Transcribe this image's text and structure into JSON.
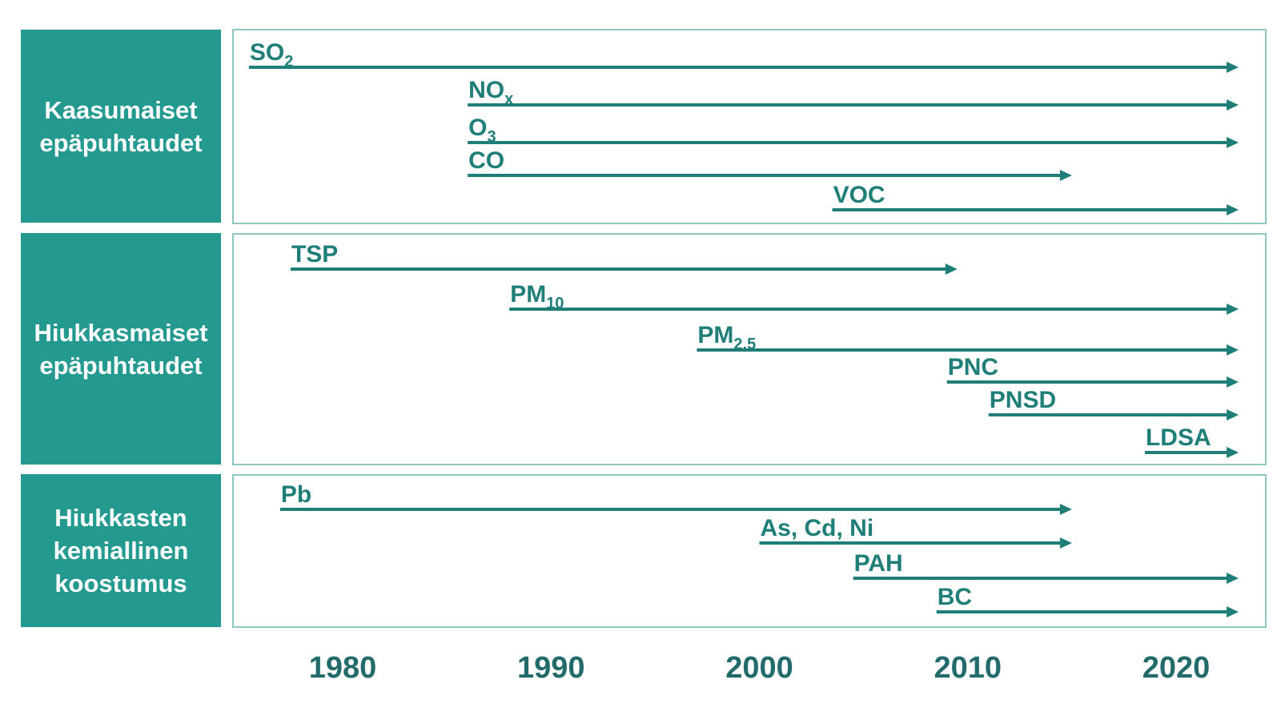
{
  "categories": [
    {
      "lines": [
        "Kaasumaiset",
        "epäpuhtaudet"
      ]
    },
    {
      "lines": [
        "Hiukkasmaiset",
        "epäpuhtaudet"
      ]
    },
    {
      "lines": [
        "Hiukkasten",
        "kemiallinen",
        "koostumus"
      ]
    }
  ],
  "colors": {
    "category_bg": "#239990",
    "arrow": "#1f7f78",
    "panel_border": "#8cc7c1",
    "axis_text": "#226b6a"
  },
  "axis": {
    "ticks": [
      1980,
      1990,
      2000,
      2010,
      2020
    ]
  },
  "series": [
    {
      "group": 0,
      "label": "SO",
      "sub": "2",
      "start": 1975.5,
      "end": 2023.0
    },
    {
      "group": 0,
      "label": "NO",
      "sub": "x",
      "start": 1986.0,
      "end": 2023.0
    },
    {
      "group": 0,
      "label": "O",
      "sub": "3",
      "start": 1986.0,
      "end": 2023.0
    },
    {
      "group": 0,
      "label": "CO",
      "sub": "",
      "start": 1986.0,
      "end": 2015.0
    },
    {
      "group": 0,
      "label": "VOC",
      "sub": "",
      "start": 2003.5,
      "end": 2023.0
    },
    {
      "group": 1,
      "label": "TSP",
      "sub": "",
      "start": 1977.5,
      "end": 2009.5
    },
    {
      "group": 1,
      "label": "PM",
      "sub": "10",
      "start": 1988.0,
      "end": 2023.0
    },
    {
      "group": 1,
      "label": "PM",
      "sub": "2,5",
      "start": 1997.0,
      "end": 2023.0
    },
    {
      "group": 1,
      "label": "PNC",
      "sub": "",
      "start": 2009.0,
      "end": 2023.0
    },
    {
      "group": 1,
      "label": "PNSD",
      "sub": "",
      "start": 2011.0,
      "end": 2023.0
    },
    {
      "group": 1,
      "label": "LDSA",
      "sub": "",
      "start": 2018.5,
      "end": 2023.0
    },
    {
      "group": 2,
      "label": "Pb",
      "sub": "",
      "start": 1977.0,
      "end": 2015.0
    },
    {
      "group": 2,
      "label": "As, Cd, Ni",
      "sub": "",
      "start": 2000.0,
      "end": 2015.0
    },
    {
      "group": 2,
      "label": "PAH",
      "sub": "",
      "start": 2004.5,
      "end": 2023.0
    },
    {
      "group": 2,
      "label": "BC",
      "sub": "",
      "start": 2008.5,
      "end": 2023.0
    }
  ]
}
